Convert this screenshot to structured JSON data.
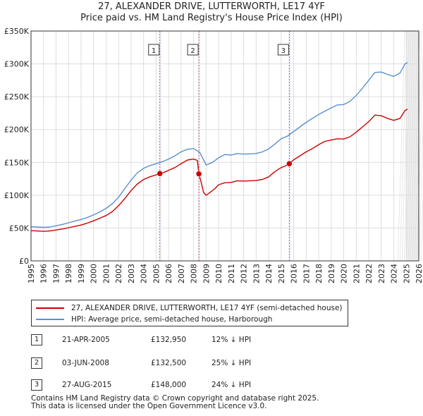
{
  "title": {
    "line1": "27, ALEXANDER DRIVE, LUTTERWORTH, LE17 4YF",
    "line2": "Price paid vs. HM Land Registry's House Price Index (HPI)"
  },
  "chart_data": {
    "type": "line",
    "title": "27, ALEXANDER DRIVE, LUTTERWORTH, LE17 4YF — Price paid vs. HM Land Registry's House Price Index (HPI)",
    "xlim": [
      1995,
      2026
    ],
    "ylim": [
      0,
      350000
    ],
    "y_ticks": [
      0,
      50000,
      100000,
      150000,
      200000,
      250000,
      300000,
      350000
    ],
    "y_tick_labels": [
      "£0",
      "£50K",
      "£100K",
      "£150K",
      "£200K",
      "£250K",
      "£300K",
      "£350K"
    ],
    "x_ticks": [
      1995,
      1996,
      1997,
      1998,
      1999,
      2000,
      2001,
      2002,
      2003,
      2004,
      2005,
      2006,
      2007,
      2008,
      2009,
      2010,
      2011,
      2012,
      2013,
      2014,
      2015,
      2016,
      2017,
      2018,
      2019,
      2020,
      2021,
      2022,
      2023,
      2024,
      2025,
      2026
    ],
    "grid": true,
    "future_shading_from": 2025.0,
    "series": [
      {
        "name": "27, ALEXANDER DRIVE, LUTTERWORTH, LE17 4YF (semi-detached house)",
        "color": "#cc0000",
        "points": [
          [
            1995.0,
            46000
          ],
          [
            1995.5,
            45500
          ],
          [
            1996.0,
            45000
          ],
          [
            1996.5,
            45500
          ],
          [
            1997.0,
            47000
          ],
          [
            1997.5,
            48500
          ],
          [
            1998.0,
            50500
          ],
          [
            1998.5,
            52500
          ],
          [
            1999.0,
            54500
          ],
          [
            1999.5,
            57500
          ],
          [
            2000.0,
            61000
          ],
          [
            2000.5,
            65000
          ],
          [
            2001.0,
            69000
          ],
          [
            2001.5,
            75000
          ],
          [
            2002.0,
            84000
          ],
          [
            2002.5,
            95000
          ],
          [
            2003.0,
            107000
          ],
          [
            2003.5,
            117000
          ],
          [
            2004.0,
            124000
          ],
          [
            2004.5,
            128000
          ],
          [
            2005.0,
            131000
          ],
          [
            2005.3,
            132950
          ],
          [
            2005.6,
            134500
          ],
          [
            2006.0,
            138000
          ],
          [
            2006.5,
            142000
          ],
          [
            2007.0,
            148000
          ],
          [
            2007.5,
            153500
          ],
          [
            2008.0,
            155000
          ],
          [
            2008.3,
            153000
          ],
          [
            2008.42,
            132500
          ],
          [
            2008.6,
            120000
          ],
          [
            2008.8,
            104000
          ],
          [
            2009.0,
            100000
          ],
          [
            2009.3,
            104000
          ],
          [
            2009.7,
            110000
          ],
          [
            2010.0,
            116000
          ],
          [
            2010.5,
            119000
          ],
          [
            2011.0,
            119500
          ],
          [
            2011.5,
            122000
          ],
          [
            2012.0,
            121500
          ],
          [
            2012.5,
            122000
          ],
          [
            2013.0,
            122500
          ],
          [
            2013.5,
            124000
          ],
          [
            2014.0,
            128000
          ],
          [
            2014.5,
            136000
          ],
          [
            2015.0,
            142000
          ],
          [
            2015.4,
            145000
          ],
          [
            2015.65,
            148000
          ],
          [
            2016.0,
            154000
          ],
          [
            2016.5,
            160000
          ],
          [
            2017.0,
            166000
          ],
          [
            2017.5,
            171000
          ],
          [
            2018.0,
            177000
          ],
          [
            2018.5,
            182000
          ],
          [
            2019.0,
            184000
          ],
          [
            2019.5,
            186000
          ],
          [
            2020.0,
            185500
          ],
          [
            2020.5,
            189000
          ],
          [
            2021.0,
            196000
          ],
          [
            2021.5,
            204000
          ],
          [
            2022.0,
            212000
          ],
          [
            2022.5,
            222000
          ],
          [
            2023.0,
            221000
          ],
          [
            2023.5,
            217000
          ],
          [
            2024.0,
            214000
          ],
          [
            2024.5,
            217000
          ],
          [
            2024.9,
            229000
          ],
          [
            2025.1,
            231000
          ]
        ]
      },
      {
        "name": "HPI: Average price, semi-detached house, Harborough",
        "color": "#5b8fcf",
        "points": [
          [
            1995.0,
            52000
          ],
          [
            1995.5,
            51500
          ],
          [
            1996.0,
            51000
          ],
          [
            1996.5,
            51500
          ],
          [
            1997.0,
            53500
          ],
          [
            1997.5,
            55500
          ],
          [
            1998.0,
            58000
          ],
          [
            1998.5,
            60500
          ],
          [
            1999.0,
            63000
          ],
          [
            1999.5,
            66000
          ],
          [
            2000.0,
            70000
          ],
          [
            2000.5,
            74500
          ],
          [
            2001.0,
            80000
          ],
          [
            2001.5,
            87000
          ],
          [
            2002.0,
            97000
          ],
          [
            2002.5,
            110000
          ],
          [
            2003.0,
            123000
          ],
          [
            2003.5,
            134000
          ],
          [
            2004.0,
            141000
          ],
          [
            2004.5,
            145000
          ],
          [
            2005.0,
            148000
          ],
          [
            2005.5,
            151000
          ],
          [
            2006.0,
            155000
          ],
          [
            2006.5,
            160000
          ],
          [
            2007.0,
            166000
          ],
          [
            2007.5,
            170000
          ],
          [
            2008.0,
            171000
          ],
          [
            2008.5,
            165000
          ],
          [
            2009.0,
            146000
          ],
          [
            2009.5,
            150000
          ],
          [
            2010.0,
            157000
          ],
          [
            2010.5,
            162000
          ],
          [
            2011.0,
            161000
          ],
          [
            2011.5,
            163500
          ],
          [
            2012.0,
            162500
          ],
          [
            2012.5,
            163000
          ],
          [
            2013.0,
            163500
          ],
          [
            2013.5,
            166000
          ],
          [
            2014.0,
            170500
          ],
          [
            2014.5,
            178000
          ],
          [
            2015.0,
            186000
          ],
          [
            2015.5,
            190000
          ],
          [
            2016.0,
            197000
          ],
          [
            2016.5,
            204000
          ],
          [
            2017.0,
            211000
          ],
          [
            2017.5,
            217000
          ],
          [
            2018.0,
            223000
          ],
          [
            2018.5,
            228000
          ],
          [
            2019.0,
            233000
          ],
          [
            2019.5,
            237500
          ],
          [
            2020.0,
            238000
          ],
          [
            2020.5,
            243000
          ],
          [
            2021.0,
            252000
          ],
          [
            2021.5,
            263000
          ],
          [
            2022.0,
            275000
          ],
          [
            2022.5,
            287000
          ],
          [
            2023.0,
            287500
          ],
          [
            2023.5,
            284000
          ],
          [
            2024.0,
            281000
          ],
          [
            2024.5,
            286000
          ],
          [
            2024.9,
            300000
          ],
          [
            2025.1,
            302000
          ]
        ]
      }
    ],
    "sales": [
      {
        "label": "1",
        "date": "21-APR-2005",
        "x": 2005.3,
        "price": 132950,
        "price_text": "£132,950",
        "hpi_text": "12% ↓ HPI"
      },
      {
        "label": "2",
        "date": "03-JUN-2008",
        "x": 2008.42,
        "price": 132500,
        "price_text": "£132,500",
        "hpi_text": "25% ↓ HPI"
      },
      {
        "label": "3",
        "date": "27-AUG-2015",
        "x": 2015.65,
        "price": 148000,
        "price_text": "£148,000",
        "hpi_text": "24% ↓ HPI"
      }
    ]
  },
  "footer": {
    "line1": "Contains HM Land Registry data © Crown copyright and database right 2025.",
    "line2": "This data is licensed under the Open Government Licence v3.0."
  }
}
